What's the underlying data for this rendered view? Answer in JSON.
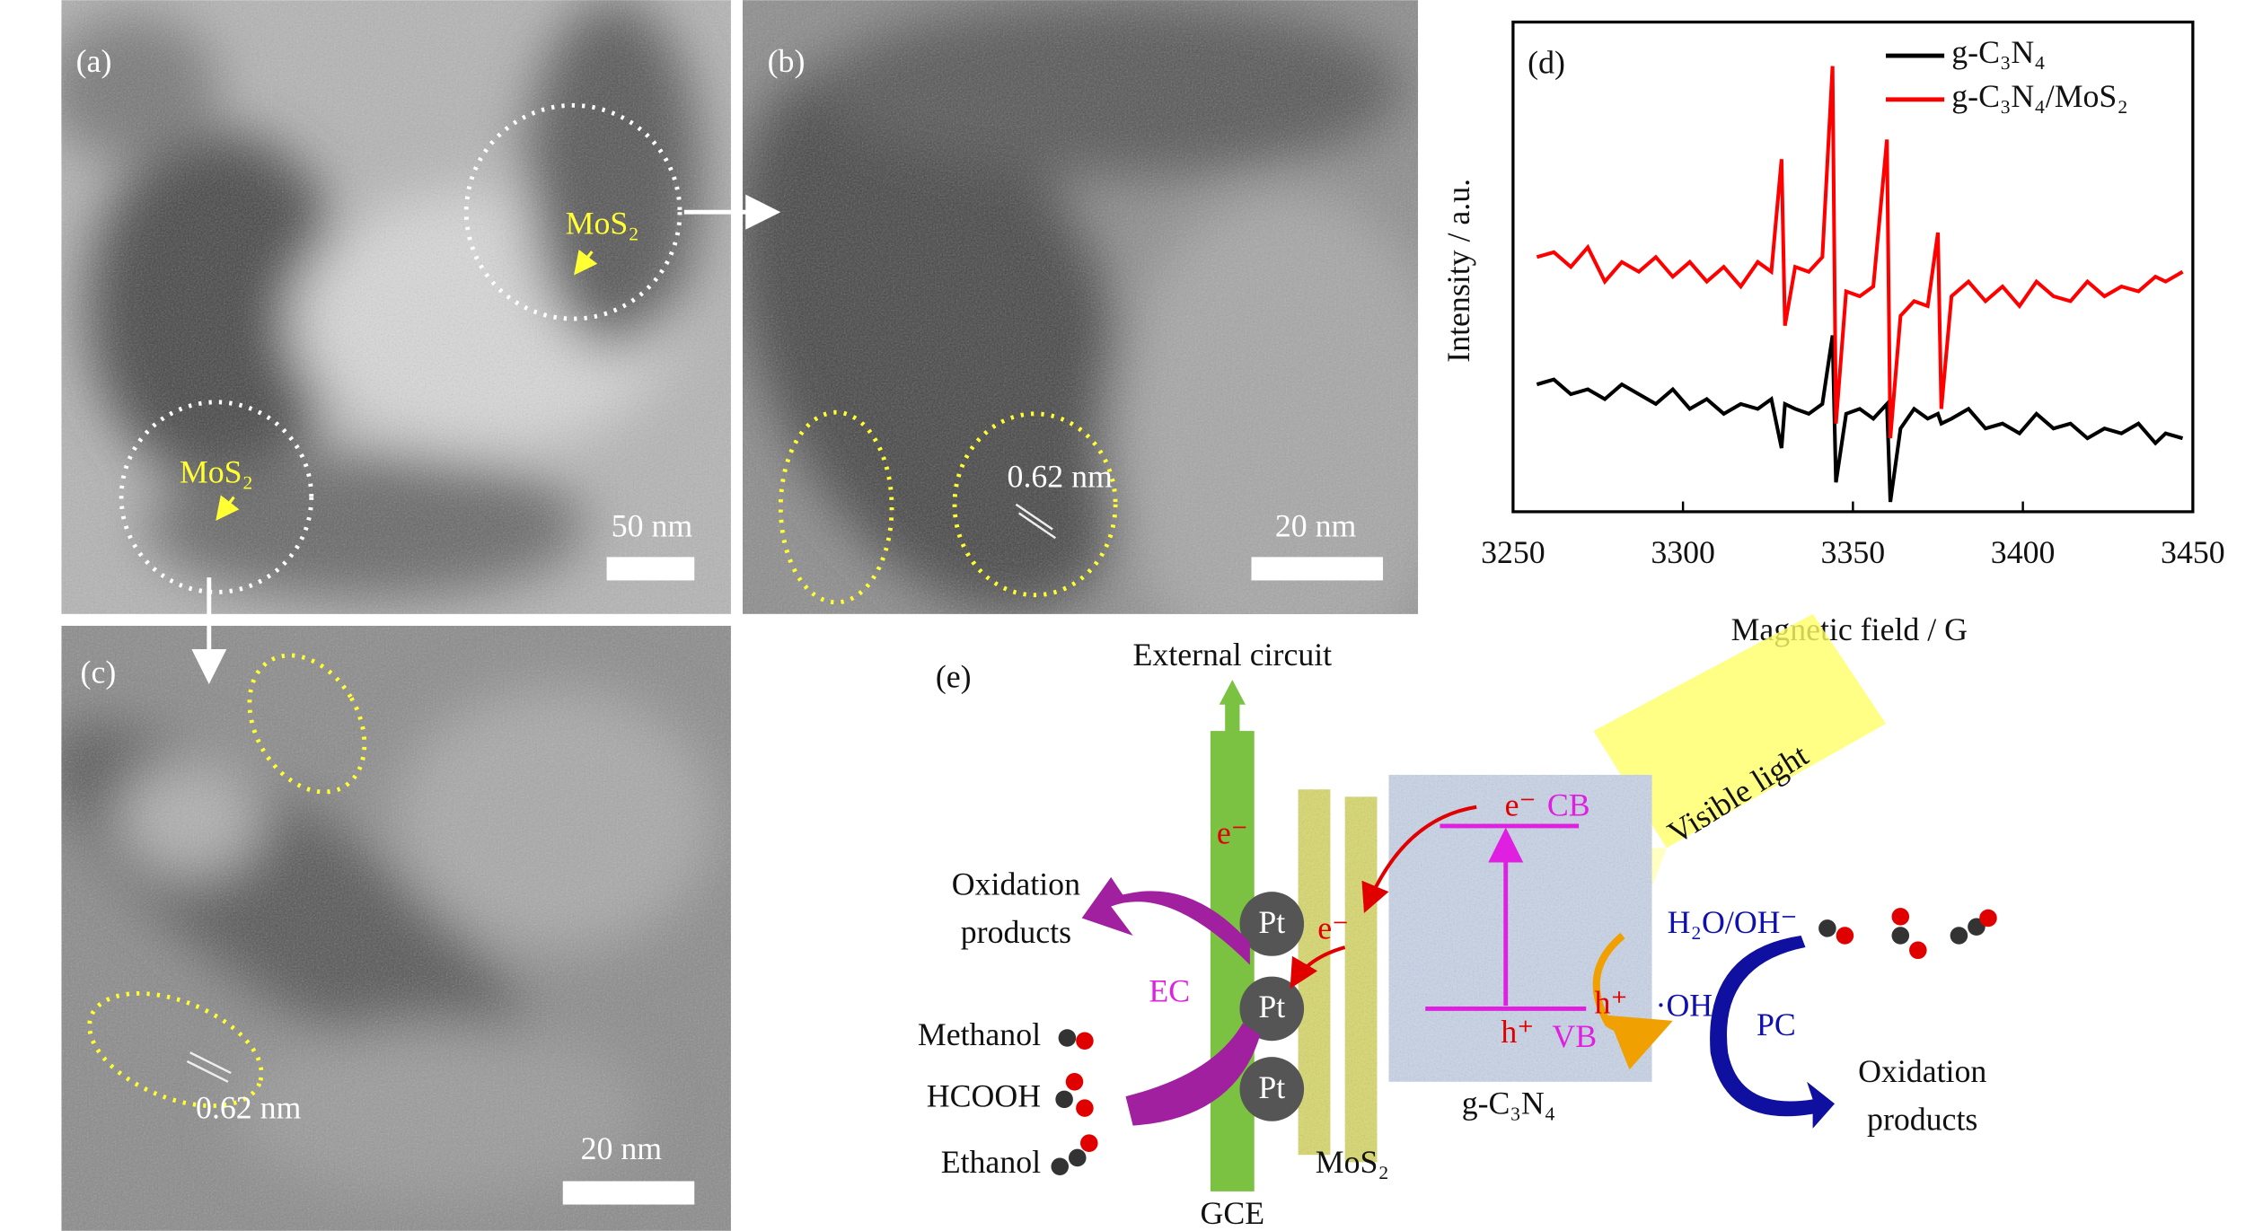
{
  "panel_a": {
    "label": "(a)",
    "annotations": [
      "MoS₂",
      "MoS₂"
    ],
    "scale_bar": "50 nm"
  },
  "panel_b": {
    "label": "(b)",
    "lattice": "0.62 nm",
    "scale_bar": "20 nm"
  },
  "panel_c": {
    "label": "(c)",
    "lattice": "0.62 nm",
    "scale_bar": "20 nm"
  },
  "chart_data": {
    "type": "line",
    "label": "(d)",
    "xlabel": "Magnetic field / G",
    "ylabel": "Intensity / a.u.",
    "xlim": [
      3250,
      3450
    ],
    "xticks": [
      3250,
      3300,
      3350,
      3400,
      3450
    ],
    "ylim": [
      0,
      100
    ],
    "legend": "upper right",
    "x": [
      3257,
      3262,
      3267,
      3272,
      3277,
      3282,
      3287,
      3292,
      3297,
      3302,
      3307,
      3312,
      3317,
      3322,
      3326,
      3329,
      3330,
      3333,
      3337,
      3341,
      3344,
      3345,
      3348,
      3352,
      3356,
      3360,
      3361,
      3364,
      3368,
      3372,
      3375,
      3376,
      3379,
      3384,
      3389,
      3394,
      3399,
      3404,
      3409,
      3414,
      3419,
      3424,
      3429,
      3434,
      3439,
      3442,
      3447
    ],
    "series": [
      {
        "name": "g-C₃N₄",
        "color": "#000000",
        "values": [
          26,
          27,
          24,
          25,
          23,
          26,
          24,
          22,
          25,
          21,
          23,
          20,
          22,
          21,
          23,
          13,
          22,
          21,
          20,
          22,
          36,
          6,
          20,
          21,
          19,
          22,
          2,
          17,
          21,
          19,
          20,
          18,
          19,
          21,
          17,
          18,
          16,
          20,
          17,
          18,
          15,
          17,
          16,
          18,
          14,
          16,
          15
        ]
      },
      {
        "name": "g-C₃N₄/MoS₂",
        "color": "#ff0000",
        "values": [
          52,
          53,
          50,
          54,
          47,
          51,
          49,
          52,
          48,
          51,
          47,
          50,
          46,
          51,
          49,
          72,
          38,
          50,
          49,
          52,
          91,
          18,
          45,
          44,
          46,
          76,
          15,
          40,
          43,
          42,
          57,
          21,
          44,
          47,
          43,
          46,
          42,
          47,
          44,
          43,
          47,
          44,
          46,
          45,
          48,
          47,
          49
        ]
      }
    ]
  },
  "panel_e": {
    "label": "(e)",
    "external_circuit": "External circuit",
    "electrode_electron": "e⁻",
    "pt": [
      "Pt",
      "Pt",
      "Pt"
    ],
    "left_products": [
      "Oxidation",
      "products"
    ],
    "ec": "EC",
    "reactants": [
      "Methanol",
      "HCOOH",
      "Ethanol"
    ],
    "gce": "GCE",
    "mos2": "MoS₂",
    "gcn": "g-C₃N₄",
    "transfer_electron": "e⁻",
    "cb_electron": "e⁻",
    "cb": "CB",
    "vb_hole": "h⁺",
    "vb": "VB",
    "hole": "h⁺",
    "radical": "·OH",
    "species": "H₂O/OH⁻",
    "pc": "PC",
    "right_products": [
      "Oxidation",
      "products"
    ],
    "light": "Visible light"
  }
}
